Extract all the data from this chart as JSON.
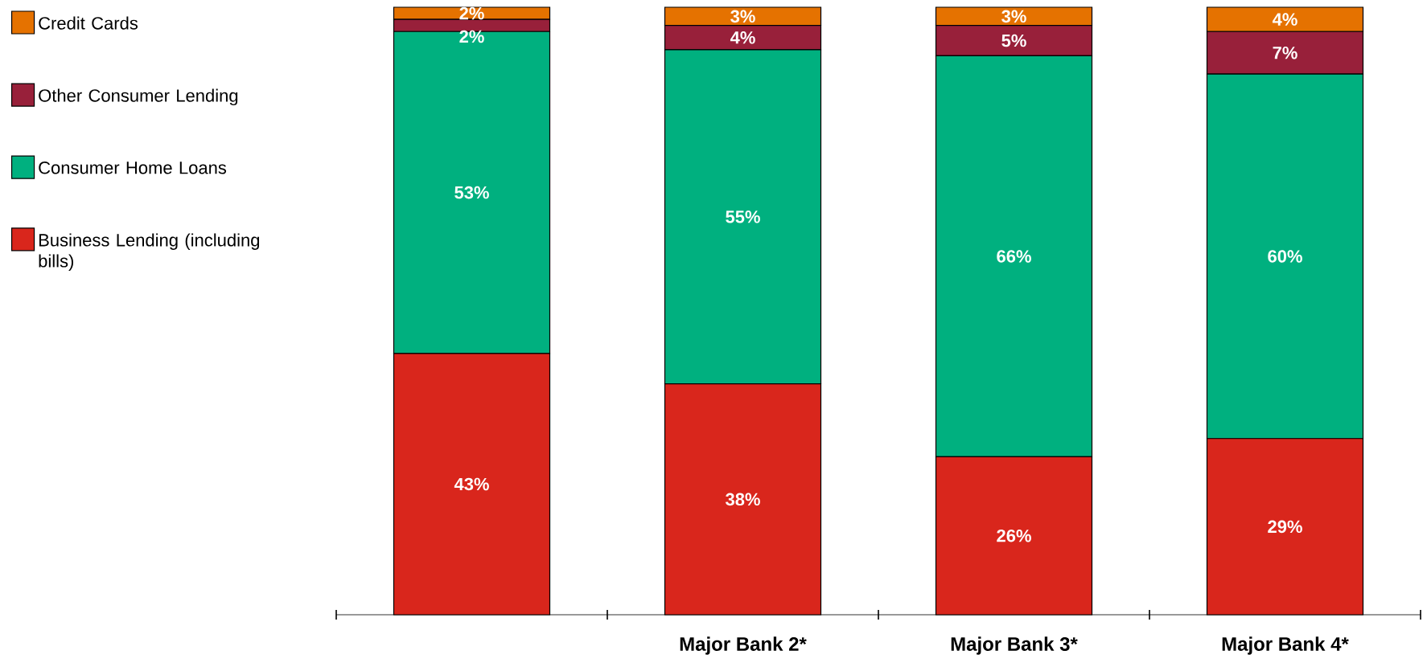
{
  "chart_data": {
    "type": "bar",
    "stacked": true,
    "categories": [
      null,
      "Major Bank 2*",
      "Major Bank 3*",
      "Major Bank 4*"
    ],
    "ylim": [
      0,
      100
    ],
    "legend": "left",
    "series": [
      {
        "name": "Business Lending (including bills)",
        "color": "#d9261c",
        "values": [
          43,
          38,
          26,
          29
        ],
        "value_labels": [
          "43%",
          "38%",
          "26%",
          "29%"
        ]
      },
      {
        "name": "Consumer Home Loans",
        "color": "#00b07f",
        "values": [
          53,
          55,
          66,
          60
        ],
        "value_labels": [
          "53%",
          "55%",
          "66%",
          "60%"
        ]
      },
      {
        "name": "Other Consumer Lending",
        "color": "#98203a",
        "values": [
          2,
          4,
          5,
          7
        ],
        "value_labels": [
          "2%",
          "4%",
          "5%",
          "7%"
        ]
      },
      {
        "name": "Credit Cards",
        "color": "#e57200",
        "values": [
          2,
          3,
          3,
          4
        ],
        "value_labels": [
          "2%",
          "3%",
          "3%",
          "4%"
        ]
      }
    ]
  }
}
